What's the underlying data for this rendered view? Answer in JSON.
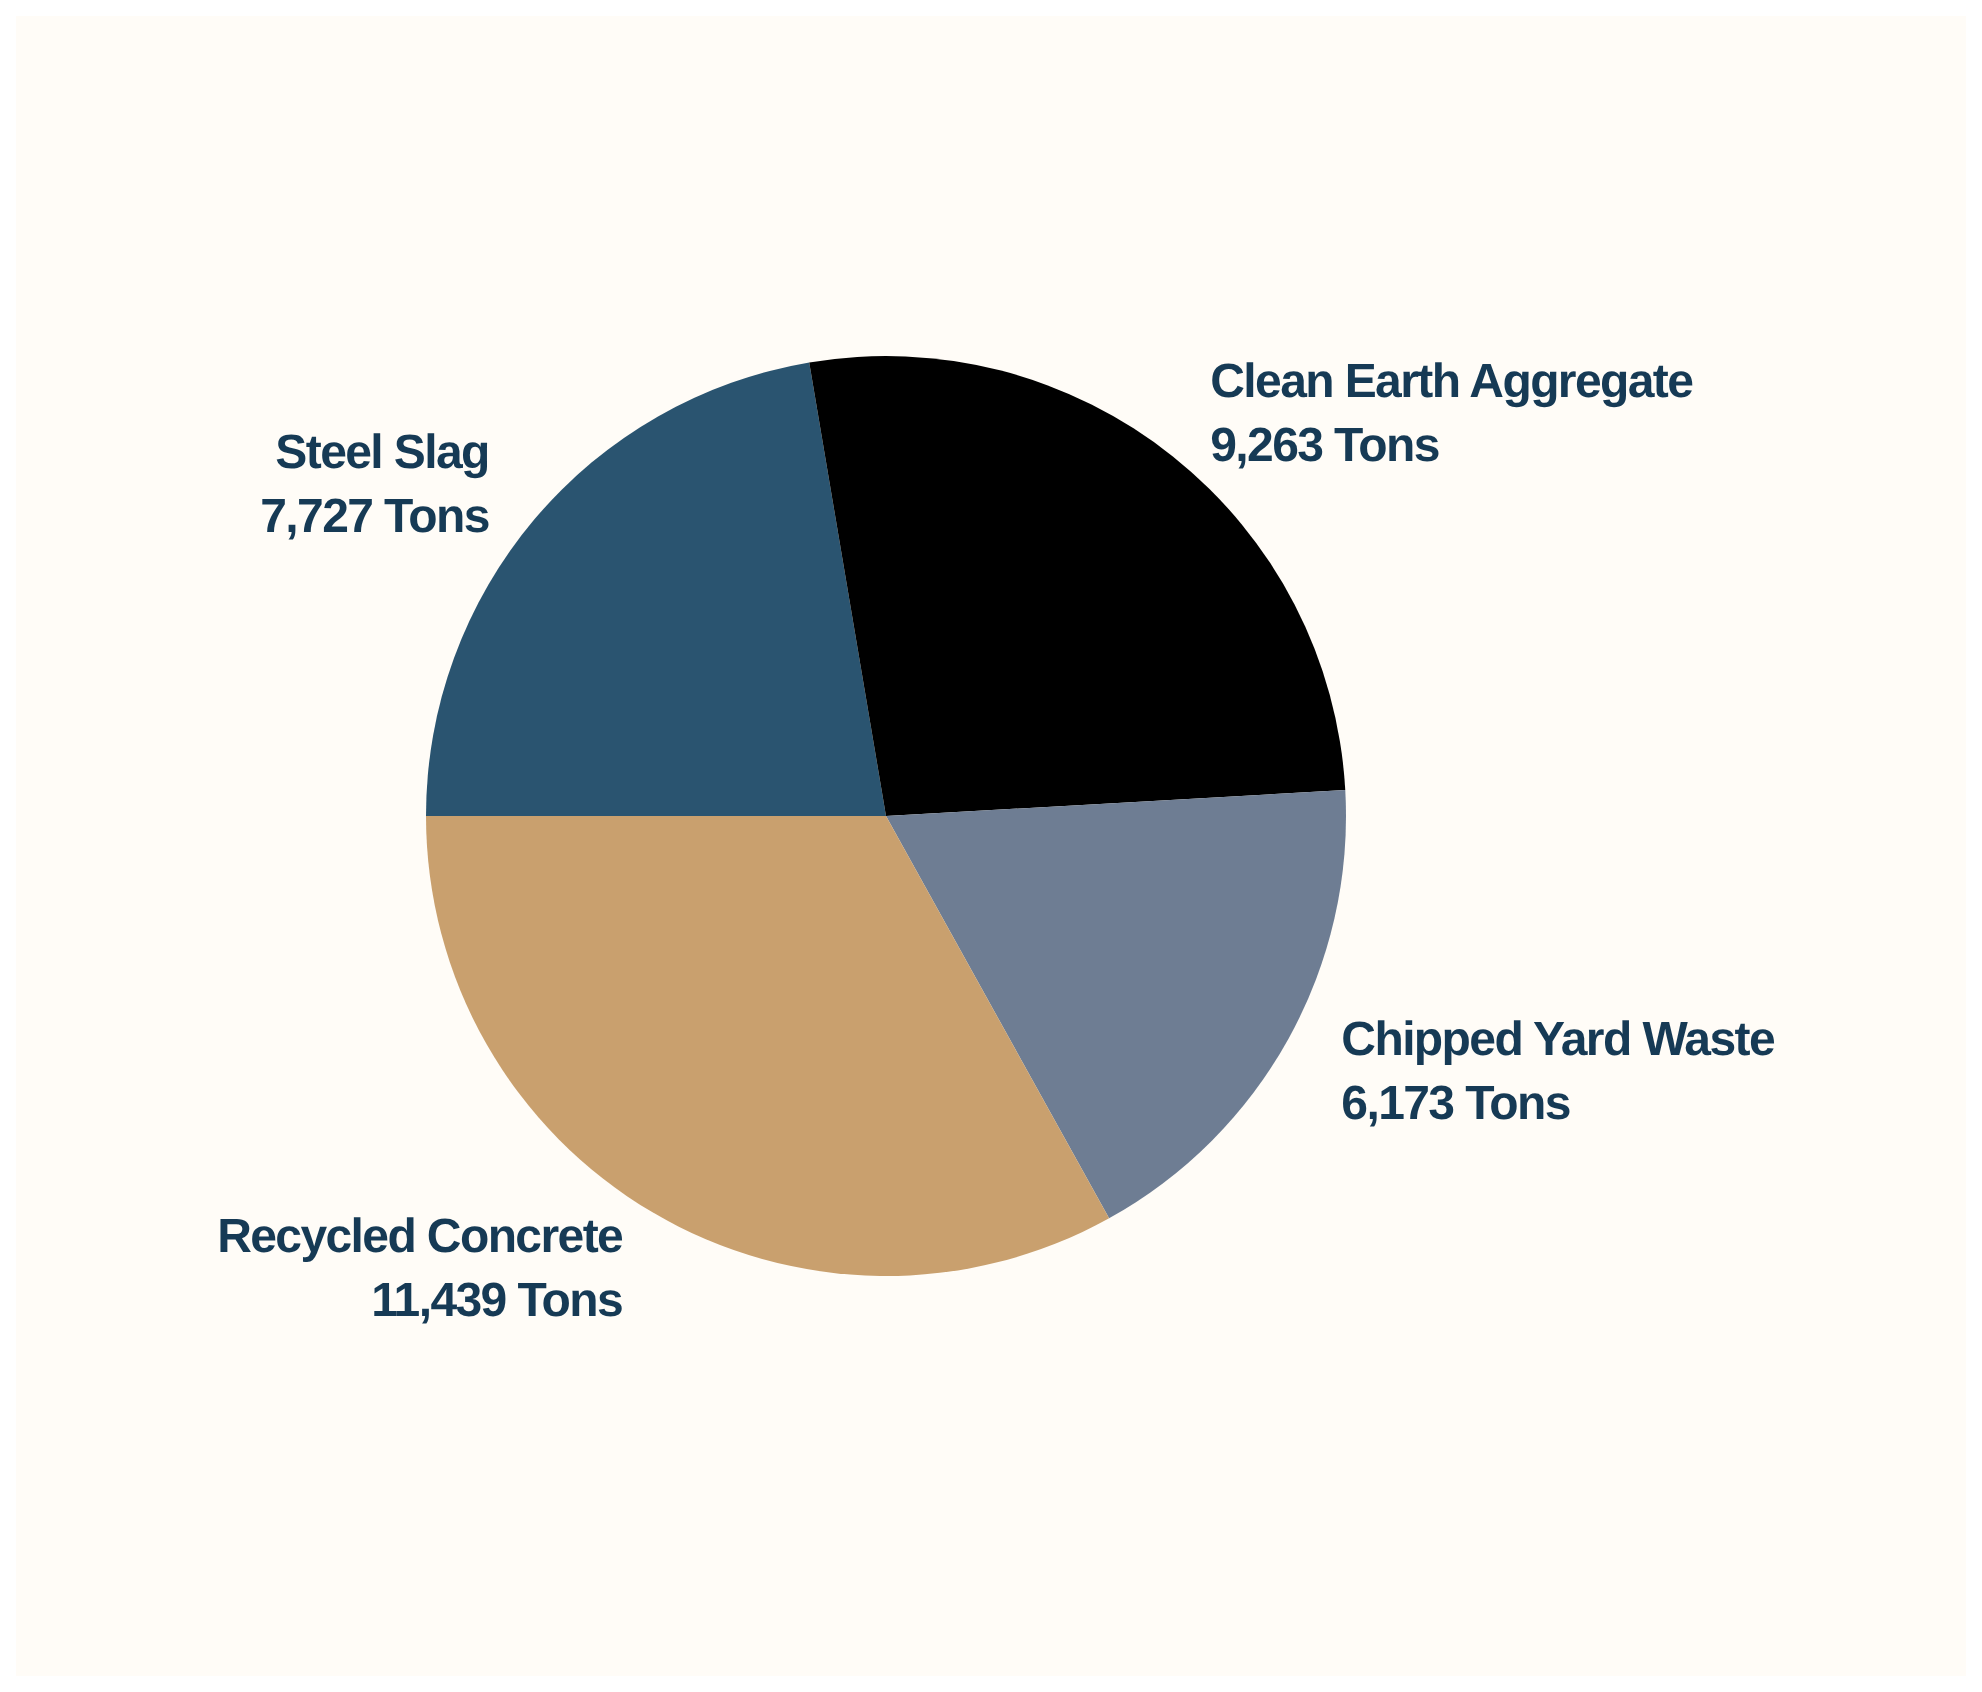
{
  "chart_data": {
    "type": "pie",
    "categories": [
      "Steel Slag",
      "Clean Earth Aggregate",
      "Chipped Yard Waste",
      "Recycled Concrete"
    ],
    "values": [
      7727,
      9263,
      6173,
      11439
    ],
    "value_labels": [
      "7,727 Tons",
      "9,263 Tons",
      "6,173 Tons",
      "11,439 Tons"
    ],
    "colors": [
      "#2a5470",
      "#000000",
      "#6e7d93",
      "#c9a06e"
    ],
    "legend": false
  }
}
